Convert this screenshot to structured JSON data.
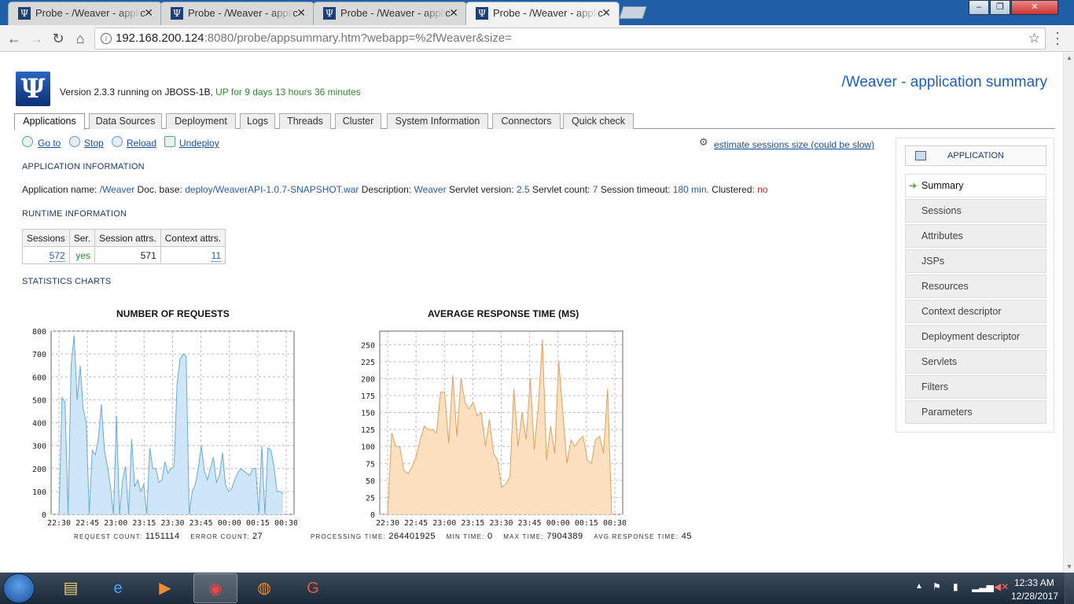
{
  "browser": {
    "tabs": [
      {
        "title": "Probe - /Weaver - applic",
        "active": false
      },
      {
        "title": "Probe - /Weaver - applic",
        "active": false
      },
      {
        "title": "Probe - /Weaver - applic",
        "active": false
      },
      {
        "title": "Probe - /Weaver - applic",
        "active": true
      }
    ],
    "tab_icon_glyph": "Ψ",
    "close_glyph": "✕",
    "url_host": "192.168.200.124",
    "url_rest": ":8080/probe/appsummary.htm?webapp=%2fWeaver&size=",
    "window_minimize": "–",
    "window_maximize": "❐",
    "window_close": "✕"
  },
  "header": {
    "logo_glyph": "Ψ",
    "version_prefix": "Version 2.3.3 running on ",
    "server": "JBOSS-1B",
    "version_sep": ", ",
    "uptime": "UP for 9 days 13 hours 36 minutes",
    "title": "/Weaver - application summary"
  },
  "tabs": [
    "Applications",
    "Data Sources",
    "Deployment",
    "Logs",
    "Threads",
    "Cluster",
    "System Information",
    "Connectors",
    "Quick check"
  ],
  "actions": {
    "goto": "Go to",
    "stop": "Stop",
    "reload": "Reload",
    "undeploy": "Undeploy",
    "estimate": "estimate sessions size (could be slow)"
  },
  "app_info": {
    "heading": "APPLICATION INFORMATION",
    "name_label": "Application name: ",
    "name": "/Weaver",
    "docbase_label": " Doc. base: ",
    "docbase": "deploy/WeaverAPI-1.0.7-SNAPSHOT.war",
    "desc_label": " Description: ",
    "desc": "Weaver",
    "servlet_version_label": " Servlet version: ",
    "servlet_version": "2.5",
    "servlet_count_label": " Servlet count: ",
    "servlet_count": "7",
    "timeout_label": " Session timeout: ",
    "timeout": "180 min.",
    "clustered_label": " Clustered: ",
    "clustered": "no"
  },
  "runtime": {
    "heading": "RUNTIME INFORMATION",
    "headers": [
      "Sessions",
      "Ser.",
      "Session attrs.",
      "Context attrs."
    ],
    "sessions": "572",
    "serializable": "yes",
    "session_attrs": "571",
    "context_attrs": "11"
  },
  "stats_heading": "STATISTICS CHARTS",
  "chart_data": [
    {
      "type": "area",
      "title": "NUMBER OF REQUESTS",
      "color": "#6aaad8",
      "fill": "#cfe6f8",
      "x_labels": [
        "22:30",
        "22:45",
        "23:00",
        "23:15",
        "23:30",
        "23:45",
        "00:00",
        "00:15",
        "00:30"
      ],
      "y_ticks": [
        0,
        100,
        200,
        300,
        400,
        500,
        600,
        700,
        800
      ],
      "ylim": [
        0,
        800
      ],
      "values": [
        0,
        510,
        490,
        0,
        650,
        780,
        500,
        650,
        460,
        400,
        0,
        280,
        260,
        330,
        480,
        280,
        210,
        120,
        0,
        430,
        0,
        150,
        210,
        0,
        330,
        120,
        150,
        100,
        130,
        0,
        290,
        200,
        200,
        140,
        150,
        230,
        180,
        200,
        210,
        570,
        680,
        700,
        690,
        0,
        100,
        130,
        200,
        300,
        190,
        150,
        200,
        250,
        140,
        170,
        270,
        130,
        100,
        110,
        150,
        180,
        200,
        190,
        180,
        170,
        200,
        200,
        0,
        300,
        0,
        290,
        280,
        210,
        100,
        100,
        90
      ]
    },
    {
      "type": "area",
      "title": "AVERAGE RESPONSE TIME (MS)",
      "color": "#e0a060",
      "fill": "#fde0c0",
      "x_labels": [
        "22:30",
        "22:45",
        "23:00",
        "23:15",
        "23:30",
        "23:45",
        "00:00",
        "00:15",
        "00:30"
      ],
      "y_ticks": [
        0,
        25,
        50,
        75,
        100,
        125,
        150,
        175,
        200,
        225,
        250
      ],
      "ylim": [
        0,
        270
      ],
      "values": [
        0,
        120,
        100,
        100,
        65,
        60,
        70,
        85,
        110,
        130,
        125,
        125,
        120,
        180,
        180,
        105,
        205,
        115,
        200,
        165,
        155,
        165,
        145,
        150,
        100,
        140,
        90,
        80,
        40,
        45,
        55,
        185,
        100,
        150,
        110,
        200,
        95,
        160,
        258,
        80,
        130,
        90,
        225,
        150,
        75,
        110,
        100,
        110,
        115,
        80,
        75,
        110,
        115,
        90,
        185,
        0
      ]
    }
  ],
  "chart_stats": {
    "req_count_label": "REQUEST COUNT: ",
    "req_count": "1151114",
    "err_count_label": "ERROR COUNT: ",
    "err_count": "27",
    "proc_label": "PROCESSING TIME: ",
    "proc": "264401925",
    "min_label": "MIN TIME: ",
    "min": "0",
    "max_label": "MAX TIME: ",
    "max": "7904389",
    "avg_label": "AVG RESPONSE TIME: ",
    "avg": "45"
  },
  "sidebar": {
    "header": "APPLICATION",
    "items": [
      "Summary",
      "Sessions",
      "Attributes",
      "JSPs",
      "Resources",
      "Context descriptor",
      "Deployment descriptor",
      "Servlets",
      "Filters",
      "Parameters"
    ]
  },
  "taskbar": {
    "time": "12:33 AM",
    "date": "12/28/2017"
  }
}
